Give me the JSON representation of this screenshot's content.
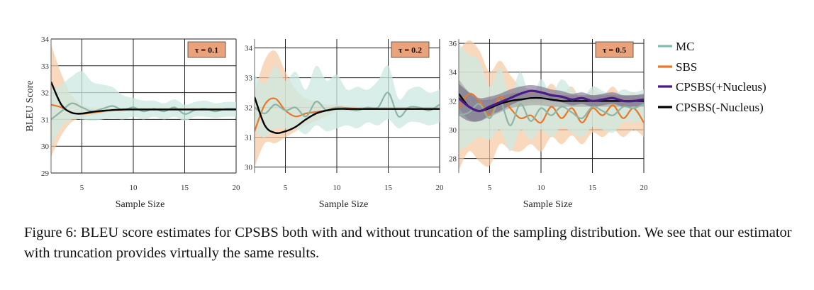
{
  "chart_data": [
    {
      "type": "line",
      "panel": "left",
      "annotation": "τ = 0.1",
      "xlabel": "Sample Size",
      "ylabel": "BLEU Score",
      "xlim": [
        2,
        20
      ],
      "ylim": [
        29,
        34
      ],
      "xticks": [
        5,
        10,
        15,
        20
      ],
      "yticks": [
        29,
        30,
        31,
        32,
        33,
        34
      ],
      "series": [
        {
          "name": "MC",
          "x": [
            2,
            3,
            4,
            5,
            6,
            7,
            8,
            9,
            10,
            11,
            12,
            13,
            14,
            15,
            16,
            17,
            18,
            19,
            20
          ],
          "values": [
            31.0,
            31.3,
            31.6,
            31.45,
            31.3,
            31.4,
            31.5,
            31.35,
            31.45,
            31.3,
            31.4,
            31.3,
            31.45,
            31.2,
            31.35,
            31.4,
            31.3,
            31.4,
            31.4
          ],
          "lower": [
            30.0,
            30.7,
            31.0,
            31.0,
            30.95,
            31.0,
            31.05,
            31.0,
            31.1,
            31.0,
            31.1,
            31.0,
            31.1,
            30.95,
            31.1,
            31.1,
            31.05,
            31.1,
            31.1
          ],
          "upper": [
            32.1,
            32.3,
            32.6,
            32.8,
            32.4,
            32.3,
            32.2,
            31.9,
            31.8,
            31.7,
            31.7,
            31.6,
            31.75,
            31.55,
            31.65,
            31.7,
            31.6,
            31.65,
            31.65
          ]
        },
        {
          "name": "SBS",
          "x": [
            2,
            3,
            4,
            5,
            6,
            7,
            8,
            9,
            10,
            11,
            12,
            13,
            14,
            15,
            16,
            17,
            18,
            19,
            20
          ],
          "values": [
            31.55,
            31.45,
            31.25,
            31.2,
            31.25,
            31.3,
            31.35,
            31.35,
            31.38,
            31.38,
            31.38,
            31.38,
            31.38,
            31.38,
            31.38,
            31.38,
            31.38,
            31.38,
            31.38
          ],
          "lower": [
            29.6,
            30.4,
            30.9,
            31.05,
            31.15,
            31.22,
            31.3,
            31.32,
            31.34,
            31.35,
            31.35,
            31.35,
            31.35,
            31.35,
            31.35,
            31.35,
            31.35,
            31.35,
            31.35
          ],
          "upper": [
            33.8,
            32.7,
            31.9,
            31.55,
            31.45,
            31.42,
            31.42,
            31.42,
            31.42,
            31.41,
            31.41,
            31.41,
            31.41,
            31.41,
            31.41,
            31.41,
            31.41,
            31.41,
            31.41
          ]
        },
        {
          "name": "CPSBS(-Nucleus)",
          "x": [
            2,
            3,
            4,
            5,
            6,
            7,
            8,
            9,
            10,
            11,
            12,
            13,
            14,
            15,
            16,
            17,
            18,
            19,
            20
          ],
          "values": [
            32.4,
            31.55,
            31.25,
            31.22,
            31.28,
            31.32,
            31.35,
            31.37,
            31.37,
            31.37,
            31.37,
            31.37,
            31.37,
            31.37,
            31.37,
            31.37,
            31.37,
            31.37,
            31.37
          ]
        }
      ]
    },
    {
      "type": "line",
      "panel": "middle",
      "annotation": "τ = 0.2",
      "xlabel": "Sample Size",
      "ylabel": "",
      "xlim": [
        2,
        20
      ],
      "ylim": [
        29.8,
        34.3
      ],
      "xticks": [
        5,
        10,
        15,
        20
      ],
      "yticks": [
        30,
        31,
        32,
        33,
        34
      ],
      "series": [
        {
          "name": "MC",
          "x": [
            2,
            3,
            4,
            5,
            6,
            7,
            8,
            9,
            10,
            11,
            12,
            13,
            14,
            15,
            16,
            17,
            18,
            19,
            20
          ],
          "values": [
            32.0,
            31.8,
            32.1,
            31.9,
            32.0,
            31.7,
            32.2,
            31.9,
            32.0,
            31.95,
            31.9,
            32.0,
            32.0,
            32.5,
            31.7,
            32.0,
            32.0,
            31.9,
            32.1
          ],
          "lower": [
            31.2,
            31.0,
            31.3,
            31.3,
            31.3,
            31.1,
            31.4,
            31.2,
            31.3,
            31.4,
            31.3,
            31.5,
            31.4,
            31.6,
            31.3,
            31.5,
            31.5,
            31.4,
            31.5
          ],
          "upper": [
            33.1,
            32.8,
            33.4,
            32.9,
            33.2,
            32.6,
            33.4,
            32.9,
            33.1,
            32.6,
            32.7,
            32.6,
            32.9,
            33.4,
            32.3,
            32.6,
            32.7,
            32.5,
            32.6
          ]
        },
        {
          "name": "SBS",
          "x": [
            2,
            3,
            4,
            5,
            6,
            7,
            8,
            9,
            10,
            11,
            12,
            13,
            14,
            15,
            16,
            17,
            18,
            19,
            20
          ],
          "values": [
            31.2,
            32.1,
            32.3,
            31.9,
            31.7,
            31.8,
            31.85,
            31.9,
            32.0,
            31.98,
            31.96,
            31.95,
            31.95,
            31.95,
            31.95,
            31.95,
            31.95,
            31.95,
            31.95
          ],
          "lower": [
            30.0,
            30.8,
            30.8,
            31.0,
            31.2,
            31.4,
            31.55,
            31.7,
            31.85,
            31.88,
            31.9,
            31.92,
            31.92,
            31.92,
            31.92,
            31.92,
            31.92,
            31.92,
            31.92
          ],
          "upper": [
            32.5,
            33.6,
            33.9,
            33.2,
            32.6,
            32.3,
            32.2,
            32.1,
            32.1,
            32.05,
            32.02,
            32.0,
            32.0,
            32.0,
            32.0,
            32.0,
            32.0,
            32.0,
            32.0
          ]
        },
        {
          "name": "CPSBS(-Nucleus)",
          "x": [
            2,
            3,
            4,
            5,
            6,
            7,
            8,
            9,
            10,
            11,
            12,
            13,
            14,
            15,
            16,
            17,
            18,
            19,
            20
          ],
          "values": [
            32.35,
            31.4,
            31.15,
            31.2,
            31.35,
            31.6,
            31.8,
            31.9,
            31.95,
            31.95,
            31.95,
            31.95,
            31.95,
            31.95,
            31.95,
            31.95,
            31.95,
            31.95,
            31.95
          ]
        }
      ]
    },
    {
      "type": "line",
      "panel": "right",
      "annotation": "τ = 0.5",
      "xlabel": "Sample Size",
      "ylabel": "",
      "xlim": [
        2,
        20
      ],
      "ylim": [
        27,
        36.3
      ],
      "xticks": [
        5,
        10,
        15,
        20
      ],
      "yticks": [
        28,
        30,
        32,
        34,
        36
      ],
      "series": [
        {
          "name": "MC",
          "x": [
            2,
            3,
            4,
            5,
            6,
            7,
            8,
            9,
            10,
            11,
            12,
            13,
            14,
            15,
            16,
            17,
            18,
            19,
            20
          ],
          "values": [
            31.0,
            31.2,
            31.8,
            30.8,
            32.0,
            30.3,
            31.8,
            30.6,
            31.5,
            31.0,
            31.6,
            31.2,
            30.8,
            31.6,
            31.3,
            31.0,
            31.6,
            31.5,
            31.8
          ],
          "lower": [
            28.5,
            29.0,
            29.5,
            29.3,
            30.0,
            28.5,
            30.0,
            29.3,
            30.0,
            29.5,
            30.2,
            29.8,
            29.5,
            30.2,
            30.0,
            29.8,
            30.5,
            30.5,
            30.6
          ],
          "upper": [
            36.0,
            35.2,
            34.8,
            33.0,
            34.3,
            32.5,
            34.0,
            32.2,
            33.5,
            32.5,
            33.5,
            32.8,
            32.2,
            33.0,
            32.7,
            32.4,
            32.8,
            32.6,
            32.8
          ]
        },
        {
          "name": "SBS",
          "x": [
            2,
            3,
            4,
            5,
            6,
            7,
            8,
            9,
            10,
            11,
            12,
            13,
            14,
            15,
            16,
            17,
            18,
            19,
            20
          ],
          "values": [
            31.5,
            32.5,
            32.0,
            31.0,
            32.3,
            31.5,
            30.8,
            31.0,
            30.5,
            31.6,
            30.8,
            31.5,
            30.5,
            31.5,
            31.0,
            31.7,
            30.8,
            31.5,
            30.5
          ],
          "lower": [
            27.2,
            28.5,
            27.8,
            27.5,
            29.0,
            28.6,
            28.5,
            29.0,
            28.5,
            29.5,
            29.0,
            29.6,
            29.0,
            29.8,
            29.5,
            30.0,
            29.5,
            30.0,
            29.5
          ],
          "upper": [
            35.5,
            36.2,
            35.5,
            34.0,
            34.8,
            33.8,
            33.0,
            32.8,
            32.4,
            33.2,
            32.5,
            33.0,
            32.0,
            32.8,
            32.4,
            33.0,
            32.2,
            32.6,
            31.8
          ]
        },
        {
          "name": "CPSBS(+Nucleus)",
          "x": [
            2,
            3,
            4,
            5,
            6,
            7,
            8,
            9,
            10,
            11,
            12,
            13,
            14,
            15,
            16,
            17,
            18,
            19,
            20
          ],
          "values": [
            32.2,
            31.6,
            31.3,
            31.6,
            31.9,
            32.2,
            32.5,
            32.7,
            32.6,
            32.4,
            32.3,
            32.1,
            32.2,
            32.0,
            32.1,
            32.2,
            32.0,
            32.0,
            32.1
          ],
          "lower": [
            31.0,
            30.6,
            30.6,
            31.0,
            31.3,
            31.7,
            32.0,
            32.2,
            32.2,
            32.0,
            31.9,
            31.7,
            31.8,
            31.6,
            31.7,
            31.8,
            31.6,
            31.6,
            31.7
          ],
          "upper": [
            33.2,
            32.6,
            32.2,
            32.3,
            32.5,
            32.8,
            33.0,
            33.1,
            33.0,
            32.8,
            32.7,
            32.5,
            32.6,
            32.4,
            32.5,
            32.6,
            32.4,
            32.4,
            32.5
          ]
        },
        {
          "name": "CPSBS(-Nucleus)",
          "x": [
            2,
            3,
            4,
            5,
            6,
            7,
            8,
            9,
            10,
            11,
            12,
            13,
            14,
            15,
            16,
            17,
            18,
            19,
            20
          ],
          "values": [
            32.5,
            31.6,
            31.3,
            31.5,
            31.8,
            32.0,
            32.1,
            32.2,
            32.2,
            32.1,
            32.0,
            32.0,
            32.0,
            32.0,
            32.0,
            32.0,
            32.0,
            32.0,
            32.0
          ],
          "lower": [
            31.5,
            30.7,
            30.6,
            30.9,
            31.2,
            31.5,
            31.6,
            31.7,
            31.7,
            31.6,
            31.6,
            31.6,
            31.6,
            31.6,
            31.6,
            31.6,
            31.6,
            31.6,
            31.6
          ],
          "upper": [
            33.5,
            32.6,
            32.1,
            32.1,
            32.3,
            32.5,
            32.6,
            32.6,
            32.6,
            32.5,
            32.4,
            32.4,
            32.4,
            32.4,
            32.4,
            32.4,
            32.4,
            32.4,
            32.4
          ]
        }
      ]
    }
  ],
  "legend": [
    {
      "label": "MC",
      "color": "#7fbfb0"
    },
    {
      "label": "SBS",
      "color": "#e9772a"
    },
    {
      "label": "CPSBS(+Nucleus)",
      "color": "#4b1a86"
    },
    {
      "label": "CPSBS(-Nucleus)",
      "color": "#000000"
    }
  ],
  "colors": {
    "mc_line": "#8db5a6",
    "mc_band": "#cce8e2",
    "sbs_line": "#e9772a",
    "sbs_band": "#f7c9a3",
    "plus_line": "#4b1a86",
    "plus_band": "#6d5c80",
    "minus_line": "#000000",
    "minus_band": "#8a8a8a",
    "tau_bg": "#eaa27a"
  },
  "caption": {
    "prefix": "Figure 6: ",
    "smallcaps": "BLEU",
    "rest": " score estimates for CPSBS both with and without truncation of the sampling distribution. We see that our estimator with truncation provides virtually the same results."
  }
}
